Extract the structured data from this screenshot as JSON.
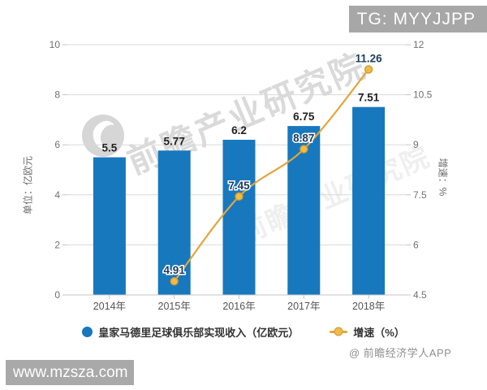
{
  "badge": {
    "text": "TG: MYYJJPP"
  },
  "watermarks": {
    "brand": "前瞻产业研究院",
    "site": "www.mzsza.com",
    "credit": "@ 前瞻经济学人APP"
  },
  "chart_data": {
    "type": "bar",
    "categories": [
      "2014年",
      "2015年",
      "2016年",
      "2017年",
      "2018年"
    ],
    "series": [
      {
        "name": "皇家马德里足球俱乐部实现收入（亿欧元）",
        "type": "bar",
        "y_axis": "left",
        "values": [
          5.5,
          5.77,
          6.2,
          6.75,
          7.51
        ],
        "color": "#1778be"
      },
      {
        "name": "增速（%）",
        "type": "line",
        "y_axis": "right",
        "values": [
          null,
          4.91,
          7.45,
          8.87,
          11.26
        ],
        "color": "#e4a63c",
        "marker_color": "#f0bb49",
        "marker_border": "#d49a2e"
      }
    ],
    "left_axis": {
      "name": "单位：亿欧元",
      "min": 0,
      "max": 10,
      "ticks": [
        0,
        2,
        4,
        6,
        8,
        10
      ]
    },
    "right_axis": {
      "name": "增速：%",
      "min": 4.5,
      "max": 12,
      "ticks": [
        4.5,
        6,
        7.5,
        9,
        10.5,
        12
      ]
    },
    "grid": true,
    "legend_position": "bottom"
  }
}
